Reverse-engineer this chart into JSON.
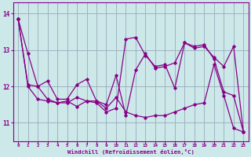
{
  "xlabel": "Windchill (Refroidissement éolien,°C)",
  "bg_color": "#cce8e8",
  "line_color": "#880088",
  "grid_color": "#99aabb",
  "xlim": [
    -0.5,
    23.5
  ],
  "ylim": [
    10.5,
    14.3
  ],
  "yticks": [
    11,
    12,
    13,
    14
  ],
  "xticks": [
    0,
    1,
    2,
    3,
    4,
    5,
    6,
    7,
    8,
    9,
    10,
    11,
    12,
    13,
    14,
    15,
    16,
    17,
    18,
    19,
    20,
    21,
    22,
    23
  ],
  "line1": [
    13.85,
    12.9,
    12.0,
    11.65,
    11.55,
    11.6,
    11.45,
    11.6,
    11.55,
    11.3,
    11.4,
    13.3,
    13.35,
    12.85,
    12.55,
    12.6,
    11.95,
    13.2,
    13.1,
    13.15,
    12.75,
    11.85,
    11.75,
    10.75
  ],
  "line2": [
    13.85,
    12.05,
    12.0,
    12.15,
    11.65,
    11.65,
    12.05,
    12.2,
    11.6,
    11.5,
    12.3,
    11.2,
    12.45,
    12.9,
    12.5,
    12.55,
    12.65,
    13.2,
    13.05,
    13.1,
    12.8,
    12.55,
    13.1,
    10.75
  ],
  "line3": [
    13.85,
    12.0,
    11.65,
    11.6,
    11.55,
    11.55,
    11.7,
    11.6,
    11.6,
    11.4,
    11.7,
    11.3,
    11.2,
    11.15,
    11.2,
    11.2,
    11.3,
    11.4,
    11.5,
    11.55,
    12.6,
    11.75,
    10.85,
    10.75
  ]
}
